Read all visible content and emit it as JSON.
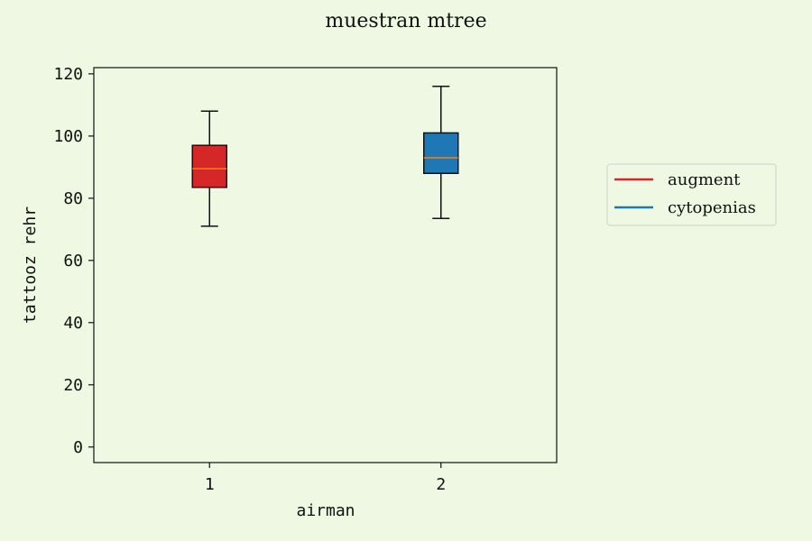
{
  "chart_data": {
    "type": "box",
    "title": "muestran mtree",
    "xlabel": "airman",
    "ylabel": "tattooz rehr",
    "ylim": [
      -5,
      122
    ],
    "yticks": [
      0,
      20,
      40,
      60,
      80,
      100,
      120
    ],
    "categories": [
      "1",
      "2"
    ],
    "grid": false,
    "legend_position": "right, outside plot",
    "series": [
      {
        "name": "augment",
        "color": "#d62728",
        "whisker_low": 71,
        "q1": 83.5,
        "median": 89.5,
        "q3": 97,
        "whisker_high": 108
      },
      {
        "name": "cytopenias",
        "color": "#1f77b4",
        "whisker_low": 73.5,
        "q1": 88,
        "median": 93,
        "q3": 101,
        "whisker_high": 116
      }
    ],
    "median_color": "#ff7f0e"
  }
}
